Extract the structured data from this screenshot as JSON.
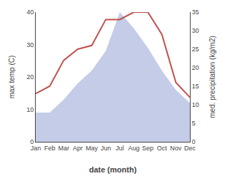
{
  "chart_data": {
    "type": "line",
    "xlabel": "date (month)",
    "ylabel": "max temp (C)",
    "y2label": "med. precipitation (kg/m2)",
    "categories": [
      "Jan",
      "Feb",
      "Mar",
      "Apr",
      "May",
      "Jun",
      "Jul",
      "Aug",
      "Sep",
      "Oct",
      "Nov",
      "Dec"
    ],
    "series": [
      {
        "type": "area",
        "color": "#c5cce8",
        "values": [
          9,
          9,
          13,
          18,
          22,
          28,
          40,
          35,
          29,
          22,
          16,
          12
        ]
      },
      {
        "type": "line",
        "color": "#c0504d",
        "axis": "y2",
        "values": [
          13,
          15,
          22,
          25,
          26,
          33,
          33,
          35,
          35,
          29,
          16,
          12
        ]
      }
    ],
    "ylim": [
      0,
      40
    ],
    "yticks": [
      0,
      10,
      20,
      30,
      40
    ],
    "y2lim": [
      0,
      35
    ],
    "y2ticks": [
      0,
      5,
      10,
      15,
      20,
      25,
      30,
      35
    ],
    "grid": false
  }
}
